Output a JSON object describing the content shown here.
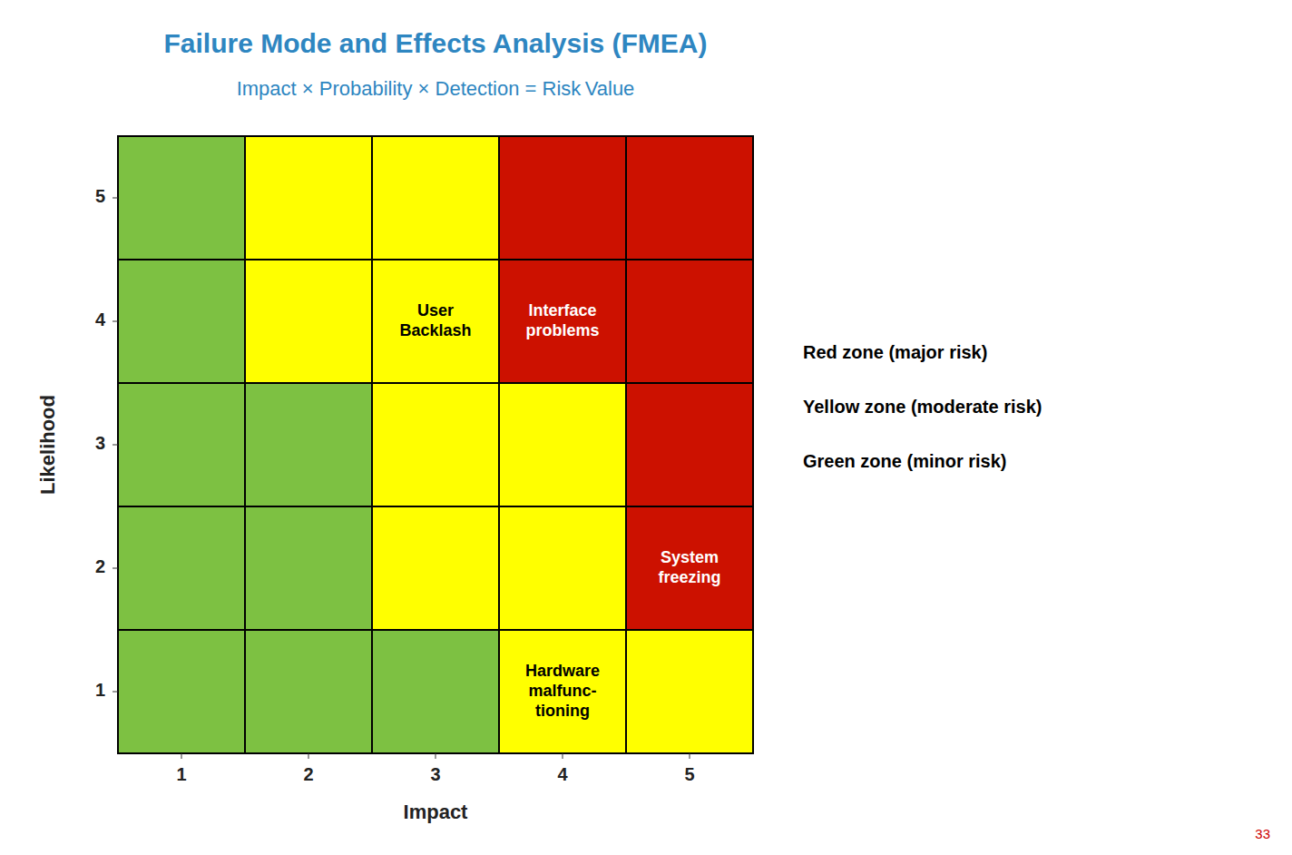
{
  "chart_data": {
    "type": "heatmap",
    "title": "Failure Mode and Effects Analysis (FMEA)",
    "subtitle": "Impact × Probability × Detection = Risk Value",
    "title_color": "#2E86C1",
    "subtitle_color": "#2E86C1",
    "x_label": "Impact",
    "y_label": "Likelihood",
    "xlim": [
      0.5,
      5.5
    ],
    "ylim": [
      0.5,
      5.5
    ],
    "xticks": [
      1,
      2,
      3,
      4,
      5
    ],
    "yticks": [
      1,
      2,
      3,
      4,
      5
    ],
    "colors": {
      "green": "#7DC142",
      "yellow": "#FFFF00",
      "red": "#CC1100"
    },
    "cells": [
      [
        "green",
        "green",
        "green",
        "yellow",
        "yellow"
      ],
      [
        "green",
        "green",
        "yellow",
        "yellow",
        "red"
      ],
      [
        "green",
        "green",
        "yellow",
        "yellow",
        "red"
      ],
      [
        "green",
        "yellow",
        "yellow",
        "red",
        "red"
      ],
      [
        "green",
        "yellow",
        "yellow",
        "red",
        "red"
      ]
    ],
    "annotations": [
      {
        "x": 3,
        "y": 4,
        "text": "User\nBacklash",
        "color": "#000000"
      },
      {
        "x": 4,
        "y": 4,
        "text": "Interface\nproblems",
        "color": "#ffffff"
      },
      {
        "x": 5,
        "y": 2,
        "text": "System\nfreezing",
        "color": "#ffffff"
      },
      {
        "x": 4,
        "y": 1,
        "text": "Hardware\nmalfunc-\ntioning",
        "color": "#000000"
      }
    ],
    "legend_lines": [
      "Red zone (major risk)",
      "Yellow zone (moderate risk)",
      "Green zone (minor risk)"
    ],
    "page_number": "33",
    "page_number_color": "#CC0000"
  }
}
